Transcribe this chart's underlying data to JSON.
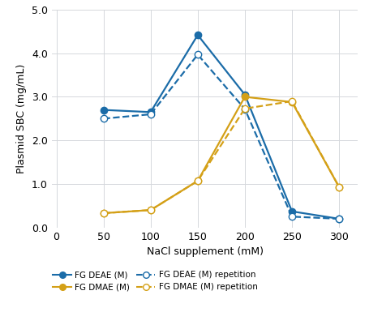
{
  "title": "",
  "xlabel": "NaCl supplement (mM)",
  "ylabel": "Plasmid SBC (mg/mL)",
  "xlim": [
    -5,
    320
  ],
  "ylim": [
    0.0,
    5.0
  ],
  "xticks": [
    0,
    50,
    100,
    150,
    200,
    250,
    300
  ],
  "yticks": [
    0.0,
    1.0,
    2.0,
    3.0,
    4.0,
    5.0
  ],
  "series": {
    "FG DEAE (M)": {
      "x": [
        50,
        100,
        150,
        200,
        250,
        300
      ],
      "y": [
        2.7,
        2.65,
        4.42,
        3.05,
        0.37,
        0.2
      ],
      "color": "#1b6ca8",
      "linestyle": "solid",
      "marker": "o",
      "markerfacecolor": "#1b6ca8",
      "markersize": 6,
      "linewidth": 1.6
    },
    "FG DEAE (M) repetition": {
      "x": [
        50,
        100,
        150,
        200,
        250,
        300
      ],
      "y": [
        2.5,
        2.6,
        3.97,
        2.72,
        0.25,
        0.2
      ],
      "color": "#1b6ca8",
      "linestyle": "dashed",
      "marker": "o",
      "markerfacecolor": "white",
      "markersize": 6,
      "linewidth": 1.6
    },
    "FG DMAE (M)": {
      "x": [
        50,
        100,
        150,
        200,
        250,
        300
      ],
      "y": [
        0.33,
        0.4,
        1.07,
        3.0,
        2.88,
        0.93
      ],
      "color": "#d4a017",
      "linestyle": "solid",
      "marker": "o",
      "markerfacecolor": "#d4a017",
      "markersize": 6,
      "linewidth": 1.6
    },
    "FG DMAE (M) repetition": {
      "x": [
        50,
        100,
        150,
        200,
        250,
        300
      ],
      "y": [
        0.33,
        0.4,
        1.07,
        2.73,
        2.9,
        0.93
      ],
      "color": "#d4a017",
      "linestyle": "dashed",
      "marker": "o",
      "markerfacecolor": "white",
      "markersize": 6,
      "linewidth": 1.6
    }
  },
  "legend_items": [
    {
      "label": "FG DEAE (M)",
      "color": "#1b6ca8",
      "linestyle": "solid",
      "mfc": "#1b6ca8"
    },
    {
      "label": "FG DMAE (M)",
      "color": "#d4a017",
      "linestyle": "solid",
      "mfc": "#d4a017"
    },
    {
      "label": "FG DEAE (M) repetition",
      "color": "#1b6ca8",
      "linestyle": "dashed",
      "mfc": "white"
    },
    {
      "label": "FG DMAE (M) repetition",
      "color": "#d4a017",
      "linestyle": "dashed",
      "mfc": "white"
    }
  ],
  "grid_color": "#d5d8dc",
  "background_color": "#ffffff",
  "xlabel_fontsize": 9,
  "ylabel_fontsize": 9,
  "tick_fontsize": 9
}
